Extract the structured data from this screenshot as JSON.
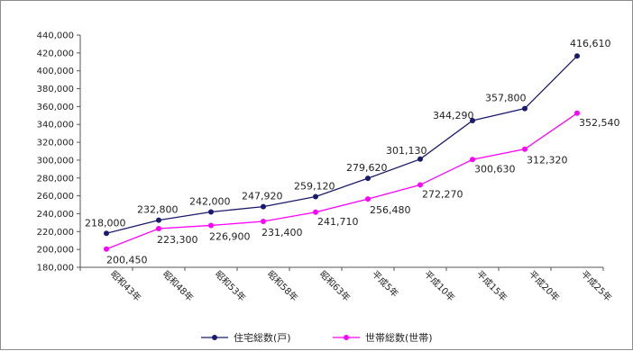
{
  "chart_data": {
    "type": "line",
    "categories": [
      "昭和43年",
      "昭和48年",
      "昭和53年",
      "昭和58年",
      "昭和63年",
      "平成5年",
      "平成10年",
      "平成15年",
      "平成20年",
      "平成25年"
    ],
    "series": [
      {
        "name": "住宅総数(戸)",
        "color": "#1a1a6e",
        "values": [
          218000,
          232800,
          242000,
          247920,
          259120,
          279620,
          301130,
          344290,
          357800,
          416610
        ],
        "labels": [
          "218,000",
          "232,800",
          "242,000",
          "247,920",
          "259,120",
          "279,620",
          "301,130",
          "344,290",
          "357,800",
          "416,610"
        ]
      },
      {
        "name": "世帯総数(世帯)",
        "color": "#ff00ff",
        "values": [
          200450,
          223300,
          226900,
          231400,
          241710,
          256480,
          272270,
          300630,
          312320,
          352540
        ],
        "labels": [
          "200,450",
          "223,300",
          "226,900",
          "231,400",
          "241,710",
          "256,480",
          "272,270",
          "300,630",
          "312,320",
          "352,540"
        ]
      }
    ],
    "ylim": [
      180000,
      440000
    ],
    "ystep": 20000,
    "yticks": [
      "180,000",
      "200,000",
      "220,000",
      "240,000",
      "260,000",
      "280,000",
      "300,000",
      "320,000",
      "340,000",
      "360,000",
      "380,000",
      "400,000",
      "420,000",
      "440,000"
    ],
    "grid": false,
    "legend": "bottom"
  }
}
